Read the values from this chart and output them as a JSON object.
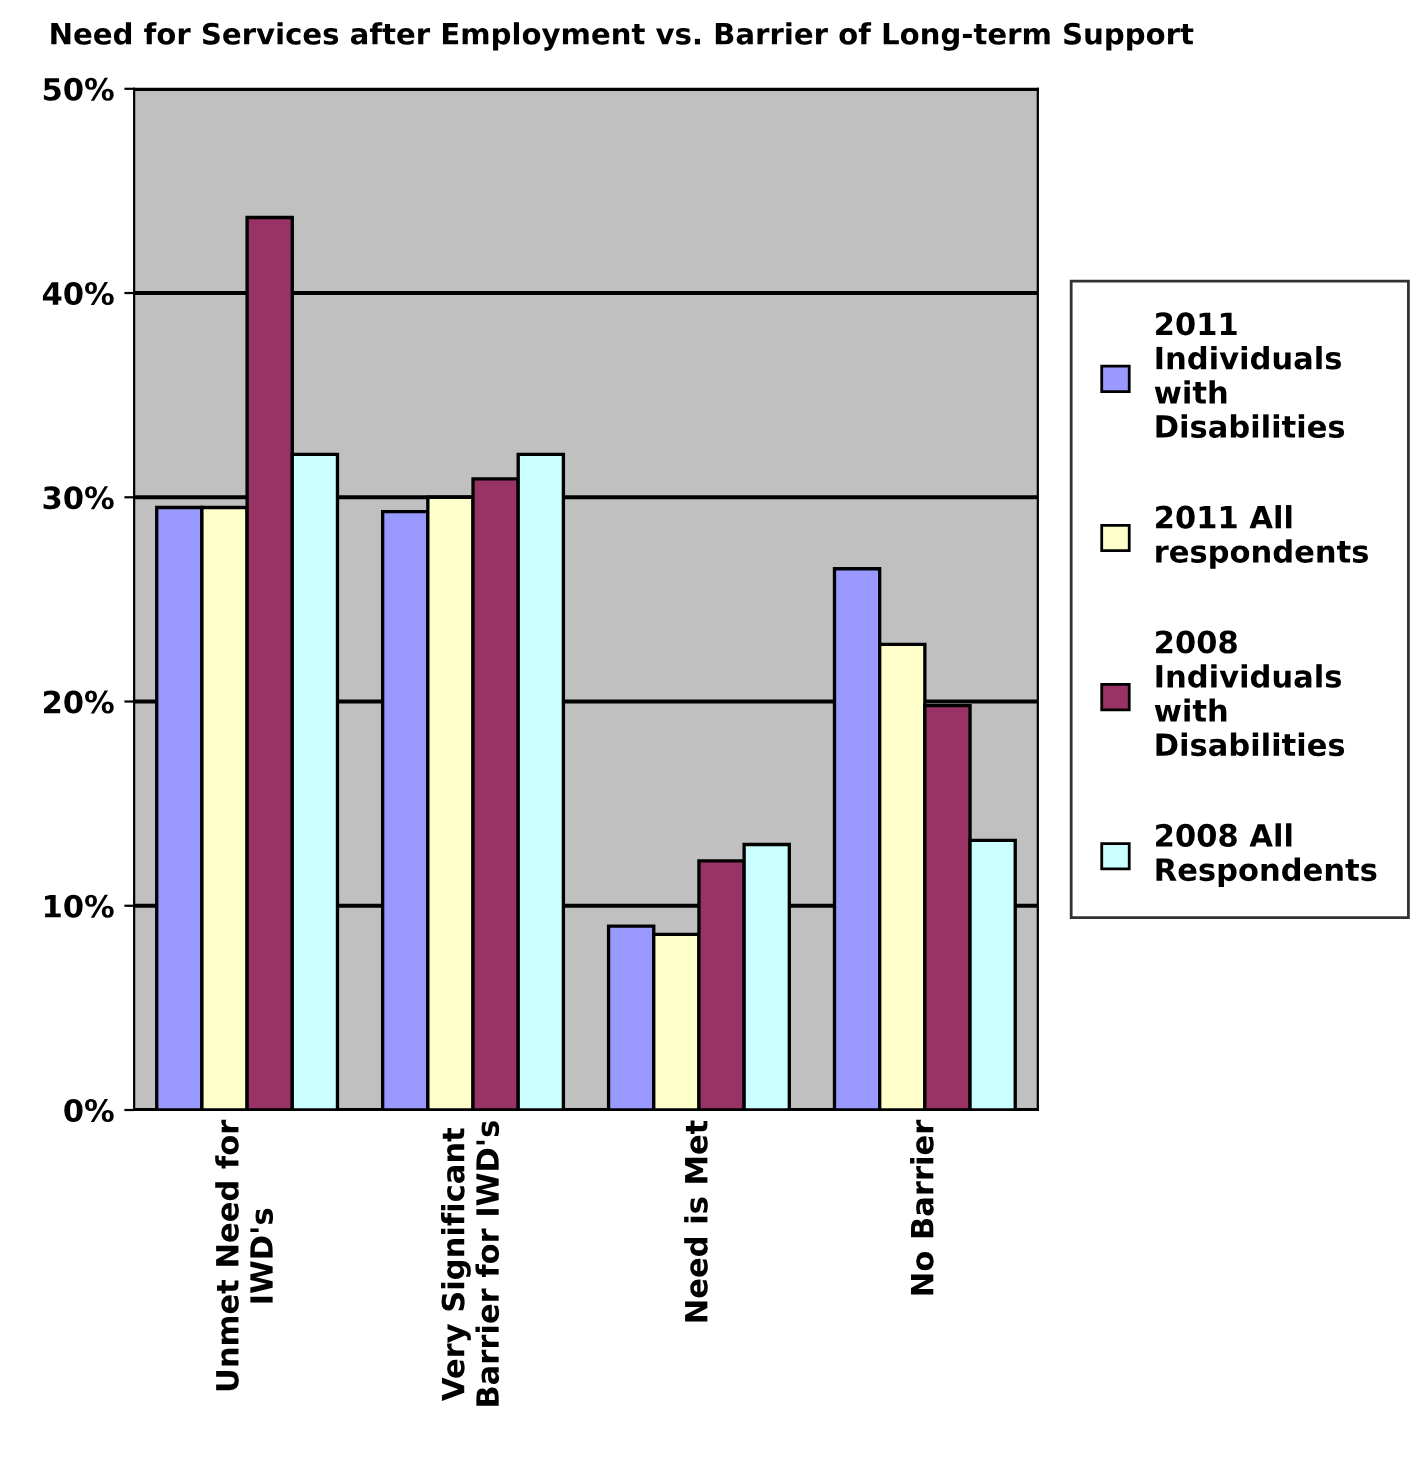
{
  "chart_data": {
    "type": "bar",
    "title": "Need for Services after Employment vs. Barrier of Long-term Support",
    "categories": [
      "Unmet Need for IWD's",
      "Very Significant Barrier for IWD's",
      "Need is Met",
      "No Barrier"
    ],
    "series": [
      {
        "name": "2011 Individuals with Disabilities",
        "color": "#9999ff",
        "values": [
          29.5,
          29.3,
          9.0,
          26.5
        ]
      },
      {
        "name": "2011 All respondents",
        "color": "#ffffcc",
        "values": [
          29.5,
          30.0,
          8.6,
          22.8
        ]
      },
      {
        "name": "2008 Individuals with Disabilities",
        "color": "#993366",
        "values": [
          43.7,
          30.9,
          12.2,
          19.8
        ]
      },
      {
        "name": "2008 All Respondents",
        "color": "#ccffff",
        "values": [
          32.1,
          32.1,
          13.0,
          13.2
        ]
      }
    ],
    "ylim": [
      0,
      50
    ],
    "yticks": [
      {
        "value": 0,
        "label": "0%"
      },
      {
        "value": 10,
        "label": "10%"
      },
      {
        "value": 20,
        "label": "20%"
      },
      {
        "value": 30,
        "label": "30%"
      },
      {
        "value": 40,
        "label": "40%"
      },
      {
        "value": 50,
        "label": "50%"
      }
    ],
    "grid": "y",
    "legend": "right"
  }
}
